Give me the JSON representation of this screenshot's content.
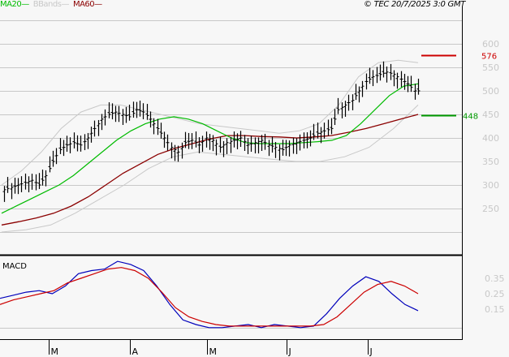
{
  "legend": {
    "ma20": {
      "label": "MA20",
      "color": "#00bb00"
    },
    "bbands": {
      "label": "BBands",
      "color": "#c8c8c8"
    },
    "ma60": {
      "label": "MA60",
      "color": "#8b0000"
    }
  },
  "copyright": "© TEC 20/7/2025 3:0 GMT",
  "macd_label": "MACD",
  "chart_data": [
    {
      "type": "line",
      "title": "Price (bar chart) with MA20, MA60, Bollinger Bands",
      "y_axis_labels": [
        "600",
        "550",
        "500",
        "450",
        "400",
        "350",
        "300",
        "250"
      ],
      "ylim": [
        200,
        650
      ],
      "x_tick_labels": [
        "M",
        "A",
        "M",
        "J",
        "J"
      ],
      "grid": true,
      "annotations": [
        {
          "label": "576",
          "value": 576,
          "color": "#cc0000",
          "meaning": "resistance"
        },
        {
          "label": "448",
          "value": 448,
          "color": "#009900",
          "meaning": "support"
        }
      ],
      "series": [
        {
          "name": "Close (approx.)",
          "values": [
            290,
            295,
            300,
            305,
            310,
            300,
            320,
            350,
            375,
            385,
            390,
            385,
            400,
            420,
            440,
            450,
            455,
            450,
            445,
            460,
            455,
            440,
            420,
            400,
            380,
            370,
            390,
            395,
            385,
            400,
            395,
            380,
            390,
            395,
            400,
            385,
            390,
            395,
            385,
            380,
            375,
            385,
            390,
            395,
            400,
            410,
            415,
            420,
            460,
            470,
            480,
            500,
            520,
            530,
            535,
            540,
            535,
            525,
            515,
            500
          ]
        },
        {
          "name": "MA20",
          "values": [
            240,
            255,
            270,
            285,
            300,
            320,
            345,
            370,
            395,
            415,
            430,
            440,
            445,
            440,
            430,
            415,
            400,
            390,
            388,
            388,
            388,
            390,
            392,
            395,
            405,
            430,
            460,
            490,
            510,
            515
          ]
        },
        {
          "name": "MA60",
          "values": [
            215,
            222,
            230,
            240,
            255,
            275,
            300,
            325,
            345,
            365,
            378,
            388,
            398,
            405,
            405,
            403,
            402,
            400,
            402,
            405,
            412,
            420,
            430,
            440,
            450
          ]
        },
        {
          "name": "BB upper",
          "values": [
            300,
            330,
            370,
            420,
            455,
            470,
            470,
            460,
            450,
            440,
            430,
            425,
            420,
            415,
            410,
            415,
            430,
            470,
            530,
            560,
            565,
            560
          ]
        },
        {
          "name": "BB lower",
          "values": [
            200,
            205,
            215,
            240,
            270,
            300,
            335,
            360,
            370,
            365,
            360,
            355,
            350,
            350,
            360,
            380,
            420,
            470
          ]
        }
      ]
    },
    {
      "type": "line",
      "title": "MACD",
      "y_axis_labels": [
        "0.35",
        "0.25",
        "0.15"
      ],
      "x_tick_labels": [
        "M",
        "A",
        "M",
        "J",
        "J"
      ],
      "series": [
        {
          "name": "MACD",
          "color": "#0000bb",
          "values": [
            0.22,
            0.24,
            0.26,
            0.27,
            0.25,
            0.3,
            0.38,
            0.4,
            0.41,
            0.46,
            0.44,
            0.4,
            0.3,
            0.18,
            0.08,
            0.05,
            0.03,
            0.03,
            0.04,
            0.05,
            0.03,
            0.05,
            0.04,
            0.03,
            0.04,
            0.12,
            0.22,
            0.3,
            0.36,
            0.33,
            0.25,
            0.18,
            0.14
          ]
        },
        {
          "name": "Signal",
          "color": "#cc0000",
          "values": [
            0.18,
            0.21,
            0.23,
            0.25,
            0.27,
            0.32,
            0.35,
            0.38,
            0.41,
            0.42,
            0.4,
            0.35,
            0.26,
            0.16,
            0.1,
            0.07,
            0.05,
            0.04,
            0.04,
            0.04,
            0.04,
            0.04,
            0.04,
            0.04,
            0.05,
            0.1,
            0.18,
            0.26,
            0.31,
            0.33,
            0.3,
            0.25
          ]
        }
      ]
    }
  ]
}
